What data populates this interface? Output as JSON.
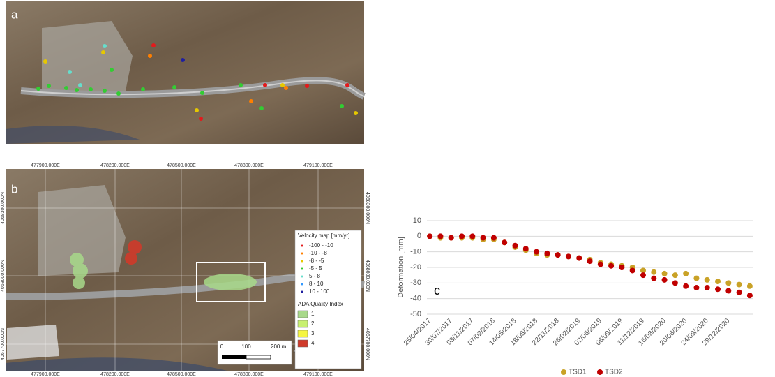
{
  "maps": {
    "panel_a": {
      "label": "a"
    },
    "panel_b": {
      "label": "b",
      "easting": [
        "477900.000E",
        "478200.000E",
        "478500.000E",
        "478800.000E",
        "479100.000E"
      ],
      "northing": [
        "4068300.000N",
        "4068000.000N",
        "4067700.000N"
      ],
      "velocity_title": "Velocity map [mm/yr]",
      "velocity_classes": [
        {
          "label": "-100 - -10",
          "color": "#e31a1c"
        },
        {
          "label": "-10 - -8",
          "color": "#ff7f00"
        },
        {
          "label": "-8 - -5",
          "color": "#e6c800"
        },
        {
          "label": "-5 - 5",
          "color": "#33cc33"
        },
        {
          "label": "5 - 8",
          "color": "#66ddcc"
        },
        {
          "label": "8 - 10",
          "color": "#3399ff"
        },
        {
          "label": "10 - 100",
          "color": "#1f1fa0"
        }
      ],
      "ada_title": "ADA Quality Index",
      "ada_classes": [
        {
          "label": "1",
          "color": "#a8d98a"
        },
        {
          "label": "2",
          "color": "#c8f070"
        },
        {
          "label": "3",
          "color": "#f5f542"
        },
        {
          "label": "4",
          "color": "#d03a2a"
        }
      ],
      "scale": [
        "0",
        "100",
        "200 m"
      ]
    }
  },
  "chart_data": {
    "type": "scatter",
    "label": "c",
    "ylabel": "Deformation [mm]",
    "x": [
      "25/04/2017",
      "12/06/2017",
      "30/07/2017",
      "16/09/2017",
      "03/11/2017",
      "21/12/2017",
      "07/02/2018",
      "27/03/2018",
      "14/05/2018",
      "01/07/2018",
      "18/08/2018",
      "05/10/2018",
      "22/11/2018",
      "09/01/2019",
      "26/02/2019",
      "15/04/2019",
      "02/06/2019",
      "20/07/2019",
      "06/09/2019",
      "24/10/2019",
      "11/12/2019",
      "28/01/2020",
      "16/03/2020",
      "03/05/2020",
      "20/06/2020",
      "07/08/2020",
      "24/09/2020",
      "11/11/2020",
      "29/12/2020",
      "15/02/2021",
      "04/04/2021"
    ],
    "xticks": [
      "25/04/2017",
      "30/07/2017",
      "03/11/2017",
      "07/02/2018",
      "14/05/2018",
      "18/08/2018",
      "22/11/2018",
      "26/02/2019",
      "02/06/2019",
      "06/09/2019",
      "11/12/2019",
      "16/03/2020",
      "20/06/2020",
      "24/09/2020",
      "29/12/2020"
    ],
    "xlim": [
      "12/04/2017",
      "20/04/2021"
    ],
    "ylim": [
      -50,
      10
    ],
    "yticks": [
      10,
      0,
      -10,
      -20,
      -30,
      -40,
      -50
    ],
    "grid": true,
    "series": [
      {
        "name": "TSD1",
        "color": "#c9a227",
        "values": [
          0,
          -1,
          -1,
          -1,
          -1,
          -2,
          -2,
          -4,
          -7,
          -9,
          -11,
          -12,
          -12,
          -13,
          -14,
          -15,
          -17,
          -18,
          -19,
          -20,
          -22,
          -23,
          -24,
          -25,
          -24,
          -27,
          -28,
          -29,
          -30,
          -31,
          -32
        ]
      },
      {
        "name": "TSD2",
        "color": "#c00000",
        "values": [
          0,
          0,
          -1,
          0,
          0,
          -1,
          -1,
          -4,
          -6,
          -8,
          -10,
          -11,
          -12,
          -13,
          -14,
          -16,
          -18,
          -19,
          -20,
          -22,
          -25,
          -27,
          -28,
          -30,
          -32,
          -33,
          -33,
          -34,
          -35,
          -36,
          -38
        ]
      }
    ]
  }
}
